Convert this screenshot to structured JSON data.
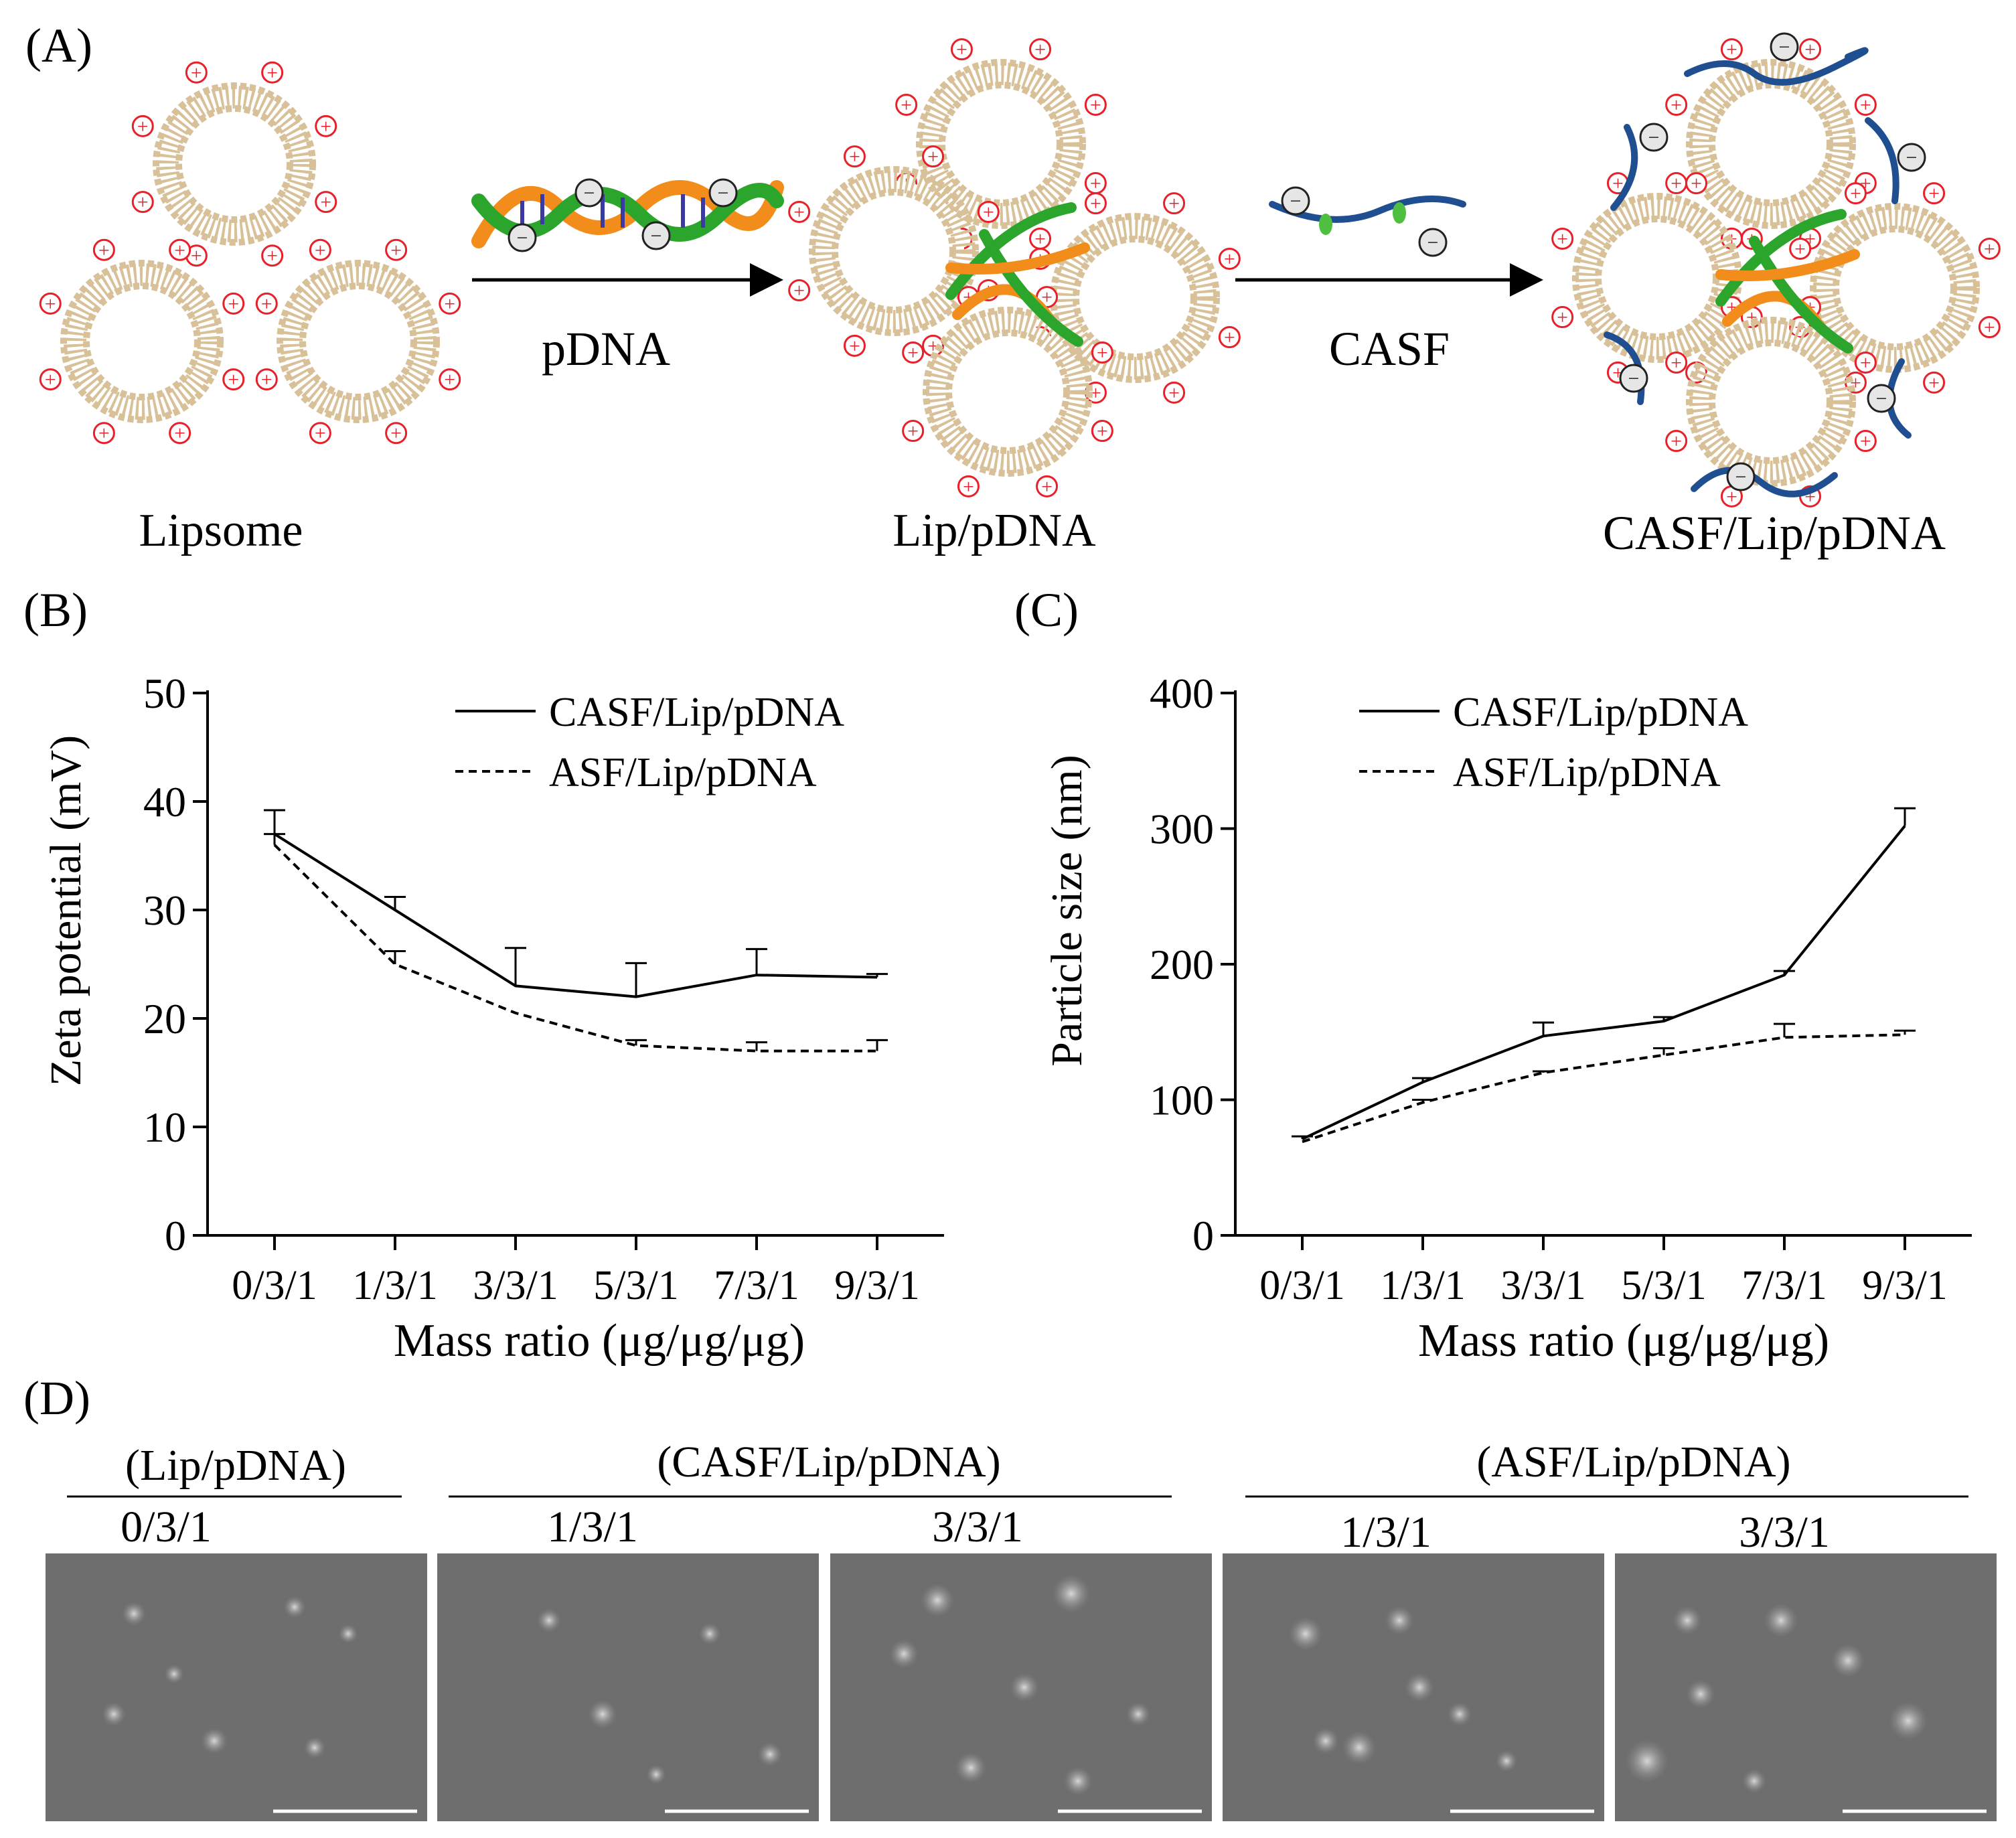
{
  "panel_a": {
    "label": "(A)",
    "charge_pos": "+",
    "charge_neg": "−",
    "step1": "pDNA",
    "step2": "CASF",
    "stage1": "Lipsome",
    "stage2": "Lip/pDNA",
    "stage3": "CASF/Lip/pDNA",
    "colors": {
      "lipid": "#d8c198",
      "pos": "#e8202a",
      "dna_green": "#2ba52b",
      "dna_orange": "#f28c1a",
      "casf_blue": "#1f4f91"
    }
  },
  "panel_d": {
    "label": "(D)",
    "groups": [
      {
        "title": "(Lip/pDNA)",
        "ratios": [
          "0/3/1"
        ]
      },
      {
        "title": "(CASF/Lip/pDNA)",
        "ratios": [
          "1/3/1",
          "3/3/1"
        ]
      },
      {
        "title": "(ASF/Lip/pDNA)",
        "ratios": [
          "1/3/1",
          "3/3/1"
        ]
      }
    ],
    "sem_base_color": "#6e6e6e"
  },
  "chart_data": [
    {
      "panel": "(B)",
      "type": "line",
      "categories": [
        "0/3/1",
        "1/3/1",
        "3/3/1",
        "5/3/1",
        "7/3/1",
        "9/3/1"
      ],
      "xlabel": "Mass ratio (μg/μg/μg)",
      "ylabel": "Zeta potential (mV)",
      "ylim": [
        0,
        50
      ],
      "yticks": [
        "0",
        "10",
        "20",
        "30",
        "40",
        "50"
      ],
      "legend_position": "top-right",
      "grid": false,
      "series": [
        {
          "name": "CASF/Lip/pDNA",
          "style": "solid",
          "values": [
            37,
            30,
            23,
            22,
            24,
            23.8
          ],
          "errors": [
            2.2,
            1.2,
            3.5,
            3.1,
            2.4,
            0.3
          ]
        },
        {
          "name": "ASF/Lip/pDNA",
          "style": "dashed",
          "values": [
            36,
            25,
            20.5,
            17.5,
            17,
            17
          ],
          "errors": [
            1.0,
            1.2,
            0,
            0.5,
            0.8,
            1.0
          ]
        }
      ]
    },
    {
      "panel": "(C)",
      "type": "line",
      "categories": [
        "0/3/1",
        "1/3/1",
        "3/3/1",
        "5/3/1",
        "7/3/1",
        "9/3/1"
      ],
      "xlabel": "Mass ratio (μg/μg/μg)",
      "ylabel": "Particle size (nm)",
      "ylim": [
        0,
        400
      ],
      "yticks": [
        "0",
        "100",
        "200",
        "300",
        "400"
      ],
      "legend_position": "top-right",
      "grid": false,
      "series": [
        {
          "name": "CASF/Lip/pDNA",
          "style": "solid",
          "values": [
            71,
            113,
            147,
            158,
            192,
            302
          ],
          "errors": [
            2,
            3,
            10,
            3,
            3,
            13
          ]
        },
        {
          "name": "ASF/Lip/pDNA",
          "style": "dashed",
          "values": [
            69,
            98,
            120,
            133,
            146,
            148
          ],
          "errors": [
            0,
            2,
            1,
            5,
            10,
            3
          ]
        }
      ]
    }
  ]
}
